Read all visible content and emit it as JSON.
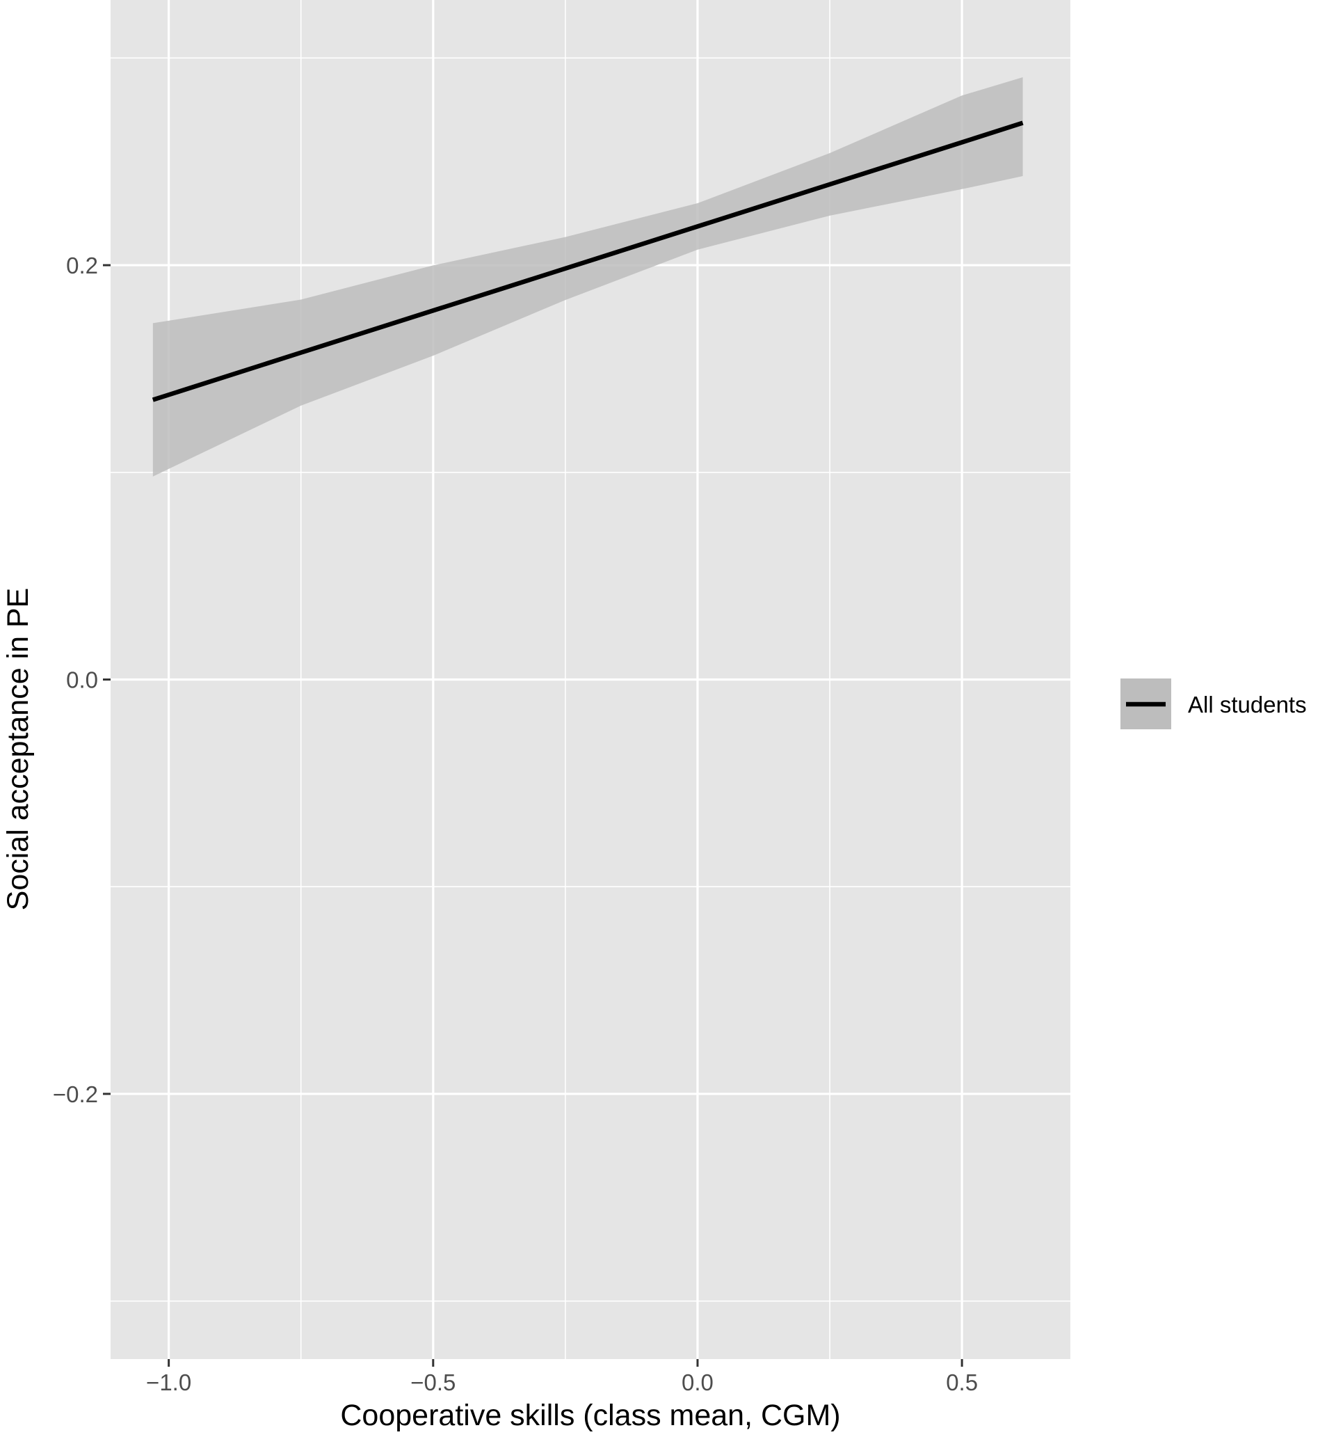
{
  "chart_data": {
    "type": "line",
    "title": "",
    "xlabel": "Cooperative skills (class mean, CGM)",
    "ylabel": "Social acceptance in PE",
    "xlim": [
      -1.11,
      0.705
    ],
    "ylim": [
      -0.328,
      0.328
    ],
    "x_ticks": [
      -1.0,
      -0.5,
      0.0,
      0.5
    ],
    "x_tick_labels": [
      "−1.0",
      "−0.5",
      "0.0",
      "0.5"
    ],
    "x_minor_ticks": [
      -0.75,
      -0.25,
      0.25
    ],
    "y_ticks": [
      -0.2,
      0.0,
      0.2
    ],
    "y_tick_labels": [
      "−0.2",
      "0.0",
      "0.2"
    ],
    "y_minor_ticks": [
      -0.3,
      -0.1,
      0.1,
      0.3
    ],
    "grid": true,
    "legend_position": "right",
    "series": [
      {
        "name": "All students",
        "color": "#000000",
        "ribbon_color": "#bdbdbd",
        "x": [
          -1.03,
          -0.75,
          -0.5,
          -0.25,
          0.0,
          0.25,
          0.5,
          0.615
        ],
        "y": [
          0.135,
          0.1578,
          0.1781,
          0.1984,
          0.2187,
          0.239,
          0.2593,
          0.2687
        ],
        "lower": [
          0.098,
          0.1322,
          0.1563,
          0.1832,
          0.2075,
          0.2239,
          0.2367,
          0.243
        ],
        "upper": [
          0.172,
          0.1834,
          0.1999,
          0.2136,
          0.2299,
          0.2541,
          0.2819,
          0.2907
        ]
      }
    ]
  }
}
